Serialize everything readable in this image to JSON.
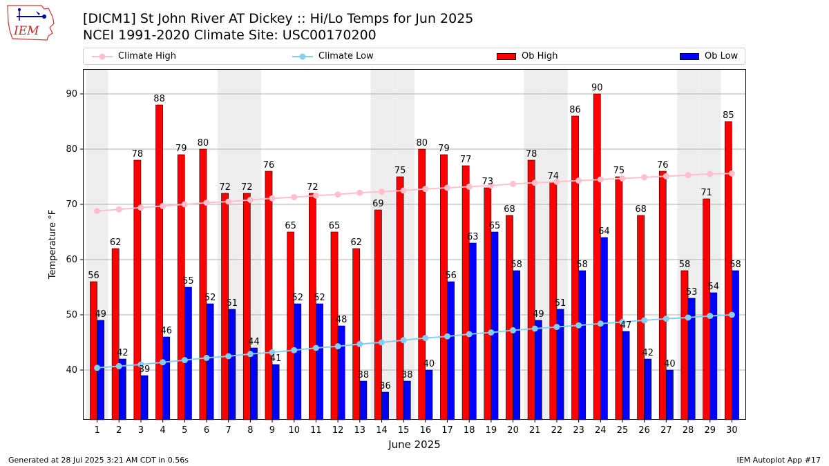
{
  "header": {
    "title_line1": "[DICM1] St John River  AT Dickey :: Hi/Lo Temps for Jun 2025",
    "title_line2": "NCEI 1991-2020 Climate Site: USC00170200",
    "logo_text": "IEM"
  },
  "legend": {
    "climate_high": "Climate High",
    "climate_low": "Climate Low",
    "ob_high": "Ob High",
    "ob_low": "Ob Low"
  },
  "footer": {
    "generated": "Generated at 28 Jul 2025 3:21 AM CDT in 0.56s",
    "app": "IEM Autoplot App #17"
  },
  "colors": {
    "ob_high": "#ff0000",
    "ob_low": "#0000ff",
    "climate_high": "#ffc0cb",
    "climate_low": "#87ceeb",
    "weekend_shade": "#eeeeee",
    "grid": "#b0b0b0"
  },
  "chart_data": {
    "type": "bar",
    "xlabel": "June 2025",
    "ylabel": "Temperature °F",
    "ylim": [
      31,
      94.5
    ],
    "yticks": [
      40,
      50,
      60,
      70,
      80,
      90
    ],
    "grid": "horizontal",
    "legend_position": "top",
    "shaded_weekend_days": [
      1,
      7,
      8,
      14,
      15,
      21,
      22,
      28,
      29
    ],
    "categories": [
      1,
      2,
      3,
      4,
      5,
      6,
      7,
      8,
      9,
      10,
      11,
      12,
      13,
      14,
      15,
      16,
      17,
      18,
      19,
      20,
      21,
      22,
      23,
      24,
      25,
      26,
      27,
      28,
      29,
      30
    ],
    "series": [
      {
        "name": "Ob High",
        "kind": "bar",
        "values": [
          56,
          62,
          78,
          88,
          79,
          80,
          72,
          72,
          76,
          65,
          72,
          65,
          62,
          69,
          75,
          80,
          79,
          77,
          73,
          68,
          78,
          74,
          86,
          90,
          75,
          68,
          76,
          58,
          71,
          85
        ]
      },
      {
        "name": "Ob Low",
        "kind": "bar",
        "values": [
          49,
          42,
          39,
          46,
          55,
          52,
          51,
          44,
          41,
          52,
          52,
          48,
          38,
          36,
          38,
          40,
          56,
          63,
          65,
          58,
          49,
          51,
          58,
          64,
          47,
          42,
          40,
          53,
          54,
          58
        ]
      },
      {
        "name": "Climate High",
        "kind": "line",
        "values": [
          68.8,
          69.1,
          69.4,
          69.7,
          70.0,
          70.3,
          70.5,
          70.8,
          71.1,
          71.3,
          71.6,
          71.8,
          72.1,
          72.3,
          72.5,
          72.8,
          73.0,
          73.2,
          73.4,
          73.7,
          73.9,
          74.1,
          74.3,
          74.5,
          74.7,
          74.9,
          75.1,
          75.3,
          75.5,
          75.6
        ]
      },
      {
        "name": "Climate Low",
        "kind": "line",
        "values": [
          40.4,
          40.7,
          41.0,
          41.4,
          41.8,
          42.2,
          42.5,
          42.9,
          43.2,
          43.6,
          44.0,
          44.3,
          44.7,
          45.0,
          45.4,
          45.8,
          46.1,
          46.5,
          46.8,
          47.2,
          47.5,
          47.8,
          48.1,
          48.4,
          48.7,
          49.0,
          49.3,
          49.5,
          49.8,
          50.0
        ]
      }
    ]
  }
}
